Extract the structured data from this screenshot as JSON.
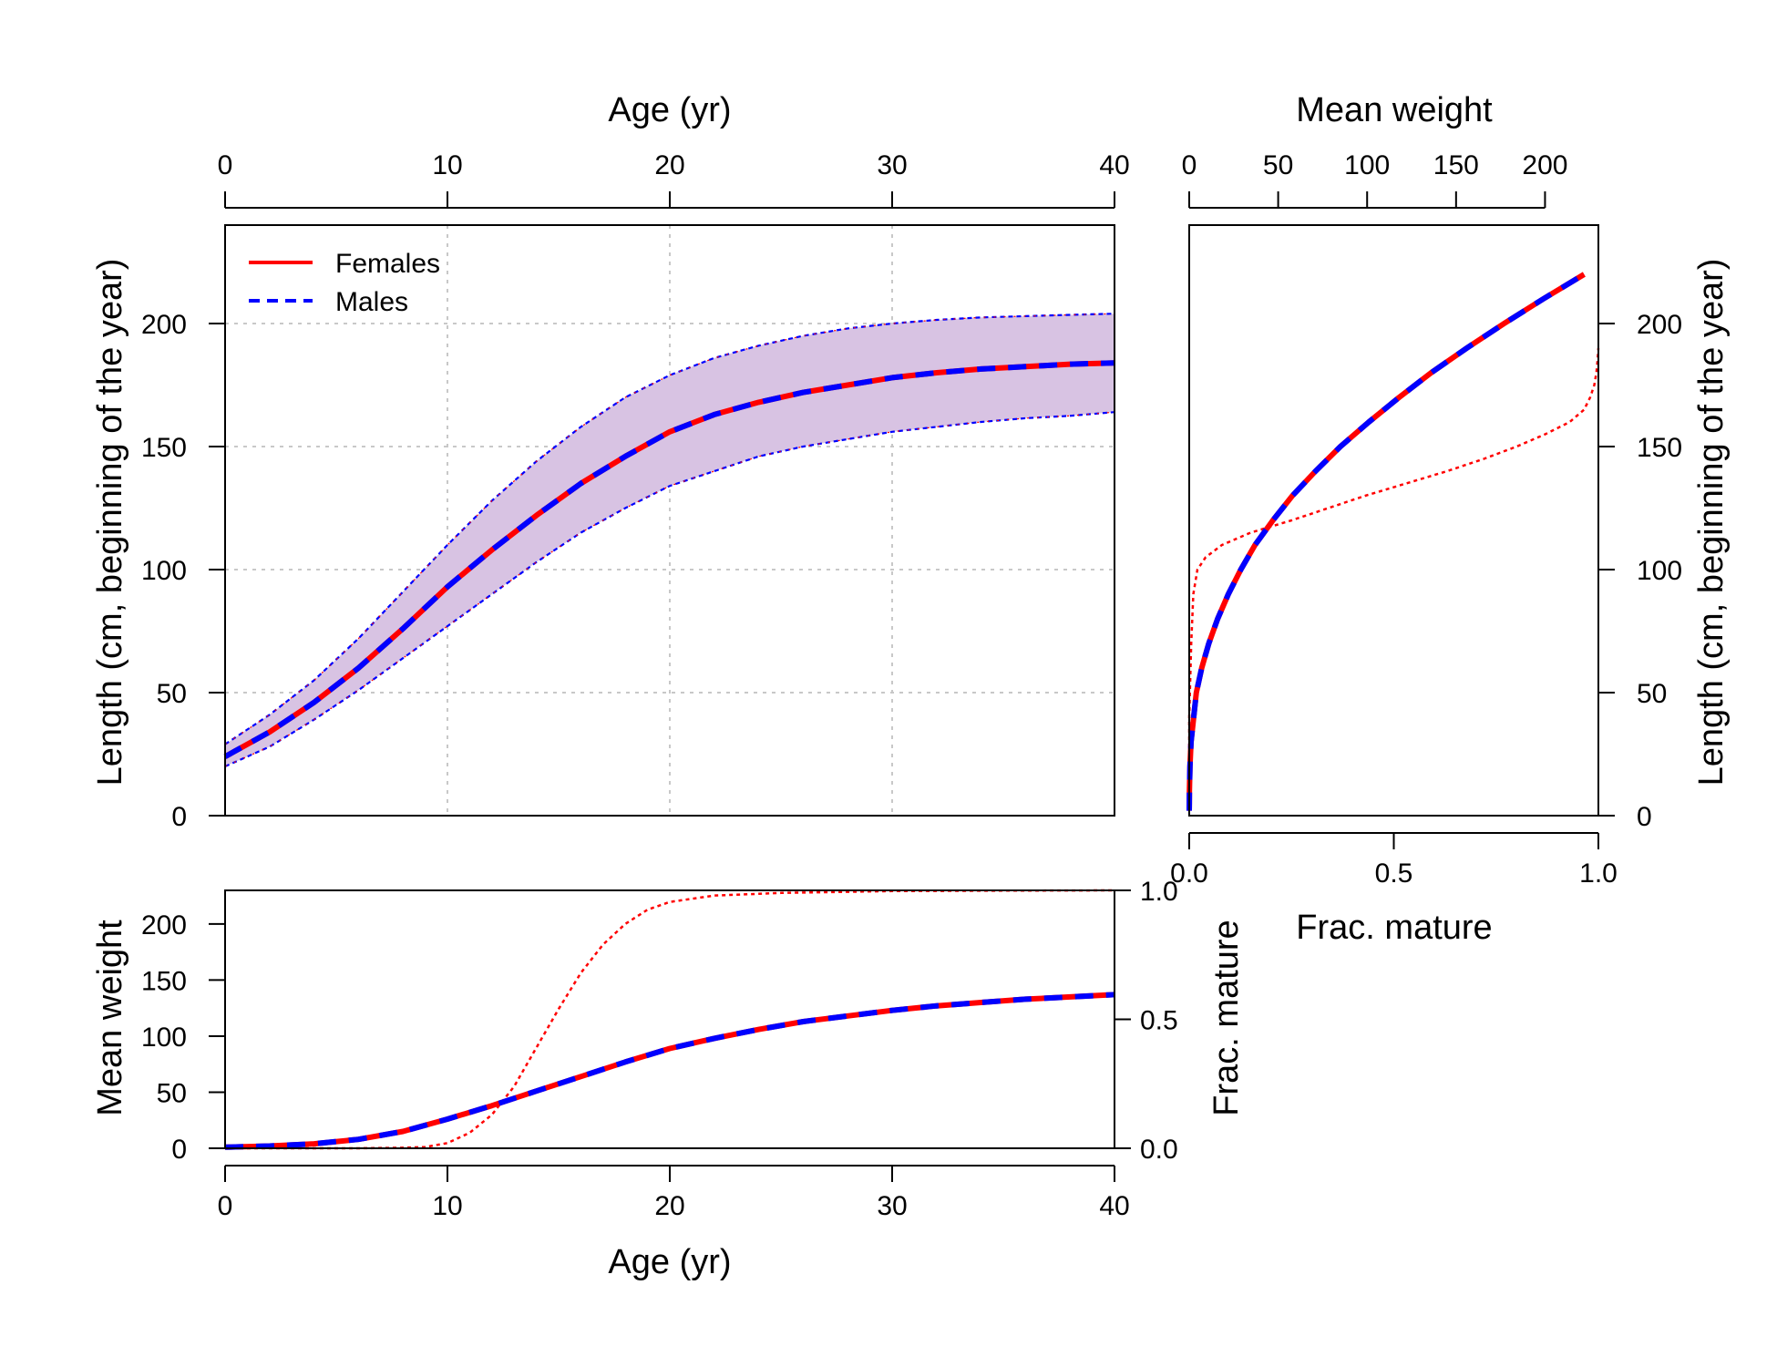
{
  "chart_data": [
    {
      "id": "length-at-age",
      "type": "line",
      "xlabel": "Age (yr)",
      "ylabel": "Length (cm, beginning of the year)",
      "xlim": [
        0,
        40
      ],
      "ylim": [
        0,
        240
      ],
      "xticks": [
        "0",
        "10",
        "20",
        "30",
        "40"
      ],
      "yticks": [
        "0",
        "50",
        "100",
        "150",
        "200"
      ],
      "grid": true,
      "legend_position": "top-left",
      "legend": [
        {
          "label": "Females",
          "color": "#ff0000",
          "style": "solid"
        },
        {
          "label": "Males",
          "color": "#0000ff",
          "style": "dashed"
        }
      ],
      "x": [
        0,
        2,
        4,
        6,
        8,
        10,
        12,
        14,
        16,
        18,
        20,
        22,
        24,
        26,
        28,
        30,
        32,
        34,
        36,
        38,
        40
      ],
      "series": [
        {
          "name": "Females",
          "values": [
            24,
            34,
            46,
            60,
            76,
            93,
            108,
            122,
            135,
            146,
            156,
            163,
            168,
            172,
            175,
            178,
            180,
            181.5,
            182.5,
            183.5,
            184
          ]
        },
        {
          "name": "Males",
          "values": [
            24,
            34,
            46,
            60,
            76,
            93,
            108,
            122,
            135,
            146,
            156,
            163,
            168,
            172,
            175,
            178,
            180,
            181.5,
            182.5,
            183.5,
            184
          ]
        }
      ],
      "interval_upper": [
        29,
        41,
        55,
        72,
        91,
        110,
        128,
        144,
        158,
        170,
        179,
        186,
        191,
        195,
        198,
        200,
        201.5,
        202.5,
        203,
        203.5,
        204
      ],
      "interval_lower": [
        20,
        28,
        39,
        51,
        64,
        77,
        90,
        103,
        115,
        125,
        134,
        140,
        146,
        150,
        153,
        156,
        158,
        160,
        161.5,
        162.5,
        164
      ],
      "interval_color": "#d8c3e3",
      "interval_line_color": "#0000ff"
    },
    {
      "id": "weight-maturity-at-length",
      "type": "line",
      "xlabel": "Frac. mature",
      "x2label": "Mean weight",
      "ylabel": "Length (cm, beginning of the year)",
      "xlim": [
        0,
        1
      ],
      "x2lim": [
        0,
        230
      ],
      "ylim": [
        0,
        240
      ],
      "xticks": [
        "0.0",
        "0.5",
        "1.0"
      ],
      "x2ticks": [
        "0",
        "50",
        "100",
        "150",
        "200"
      ],
      "yticks": [
        "0",
        "50",
        "100",
        "150",
        "200"
      ],
      "length": [
        2,
        5,
        10,
        20,
        30,
        40,
        50,
        60,
        70,
        80,
        90,
        100,
        110,
        120,
        130,
        140,
        150,
        160,
        170,
        180,
        190,
        200,
        210,
        220
      ],
      "series": [
        {
          "name": "Females",
          "axis": "Mean weight",
          "values": [
            0,
            0.05,
            0.1,
            0.4,
            1,
            2.5,
            4,
            7,
            11,
            16,
            22,
            29,
            37,
            47,
            58,
            71,
            85,
            101,
            118,
            136,
            156,
            177,
            199,
            222
          ]
        },
        {
          "name": "Males",
          "axis": "Mean weight",
          "values": [
            0,
            0.05,
            0.1,
            0.4,
            1,
            2.5,
            4,
            7,
            11,
            16,
            22,
            29,
            37,
            47,
            58,
            71,
            85,
            101,
            118,
            136,
            156,
            177,
            199,
            222
          ]
        }
      ],
      "maturity": {
        "length": [
          10,
          40,
          70,
          90,
          100,
          105,
          110,
          115,
          120,
          125,
          130,
          135,
          140,
          145,
          150,
          155,
          160,
          165,
          170,
          175,
          180,
          185,
          190
        ],
        "values": [
          0,
          0,
          0.005,
          0.01,
          0.02,
          0.04,
          0.08,
          0.15,
          0.25,
          0.34,
          0.43,
          0.53,
          0.63,
          0.72,
          0.8,
          0.87,
          0.93,
          0.965,
          0.98,
          0.99,
          0.995,
          0.998,
          1.0
        ],
        "color": "#ff0000",
        "style": "dotted"
      }
    },
    {
      "id": "weight-maturity-at-age",
      "type": "line",
      "xlabel": "Age (yr)",
      "ylabel": "Mean weight",
      "y2label": "Frac. mature",
      "xlim": [
        0,
        40
      ],
      "ylim": [
        0,
        230
      ],
      "y2lim": [
        0,
        1
      ],
      "xticks": [
        "0",
        "10",
        "20",
        "30",
        "40"
      ],
      "yticks": [
        "0",
        "50",
        "100",
        "150",
        "200"
      ],
      "y2ticks": [
        "0.0",
        "0.5",
        "1.0"
      ],
      "x": [
        0,
        2,
        4,
        6,
        8,
        10,
        12,
        14,
        16,
        18,
        20,
        22,
        24,
        26,
        28,
        30,
        32,
        34,
        36,
        38,
        40
      ],
      "series": [
        {
          "name": "Females",
          "values": [
            1,
            2,
            4,
            8,
            15,
            26,
            38,
            51,
            64,
            77,
            89,
            98,
            106,
            113,
            118,
            123,
            127,
            130,
            133,
            135,
            137
          ]
        },
        {
          "name": "Males",
          "values": [
            1,
            2,
            4,
            8,
            15,
            26,
            38,
            51,
            64,
            77,
            89,
            98,
            106,
            113,
            118,
            123,
            127,
            130,
            133,
            135,
            137
          ]
        }
      ],
      "maturity": {
        "x": [
          0,
          6,
          8,
          9,
          10,
          11,
          12,
          13,
          14,
          15,
          16,
          17,
          18,
          19,
          20,
          22,
          25,
          30,
          35,
          40
        ],
        "values": [
          0,
          0,
          0.002,
          0.005,
          0.02,
          0.06,
          0.13,
          0.24,
          0.39,
          0.54,
          0.68,
          0.79,
          0.87,
          0.925,
          0.955,
          0.98,
          0.99,
          0.997,
          0.999,
          1.0
        ],
        "color": "#ff0000",
        "style": "dotted"
      }
    }
  ]
}
